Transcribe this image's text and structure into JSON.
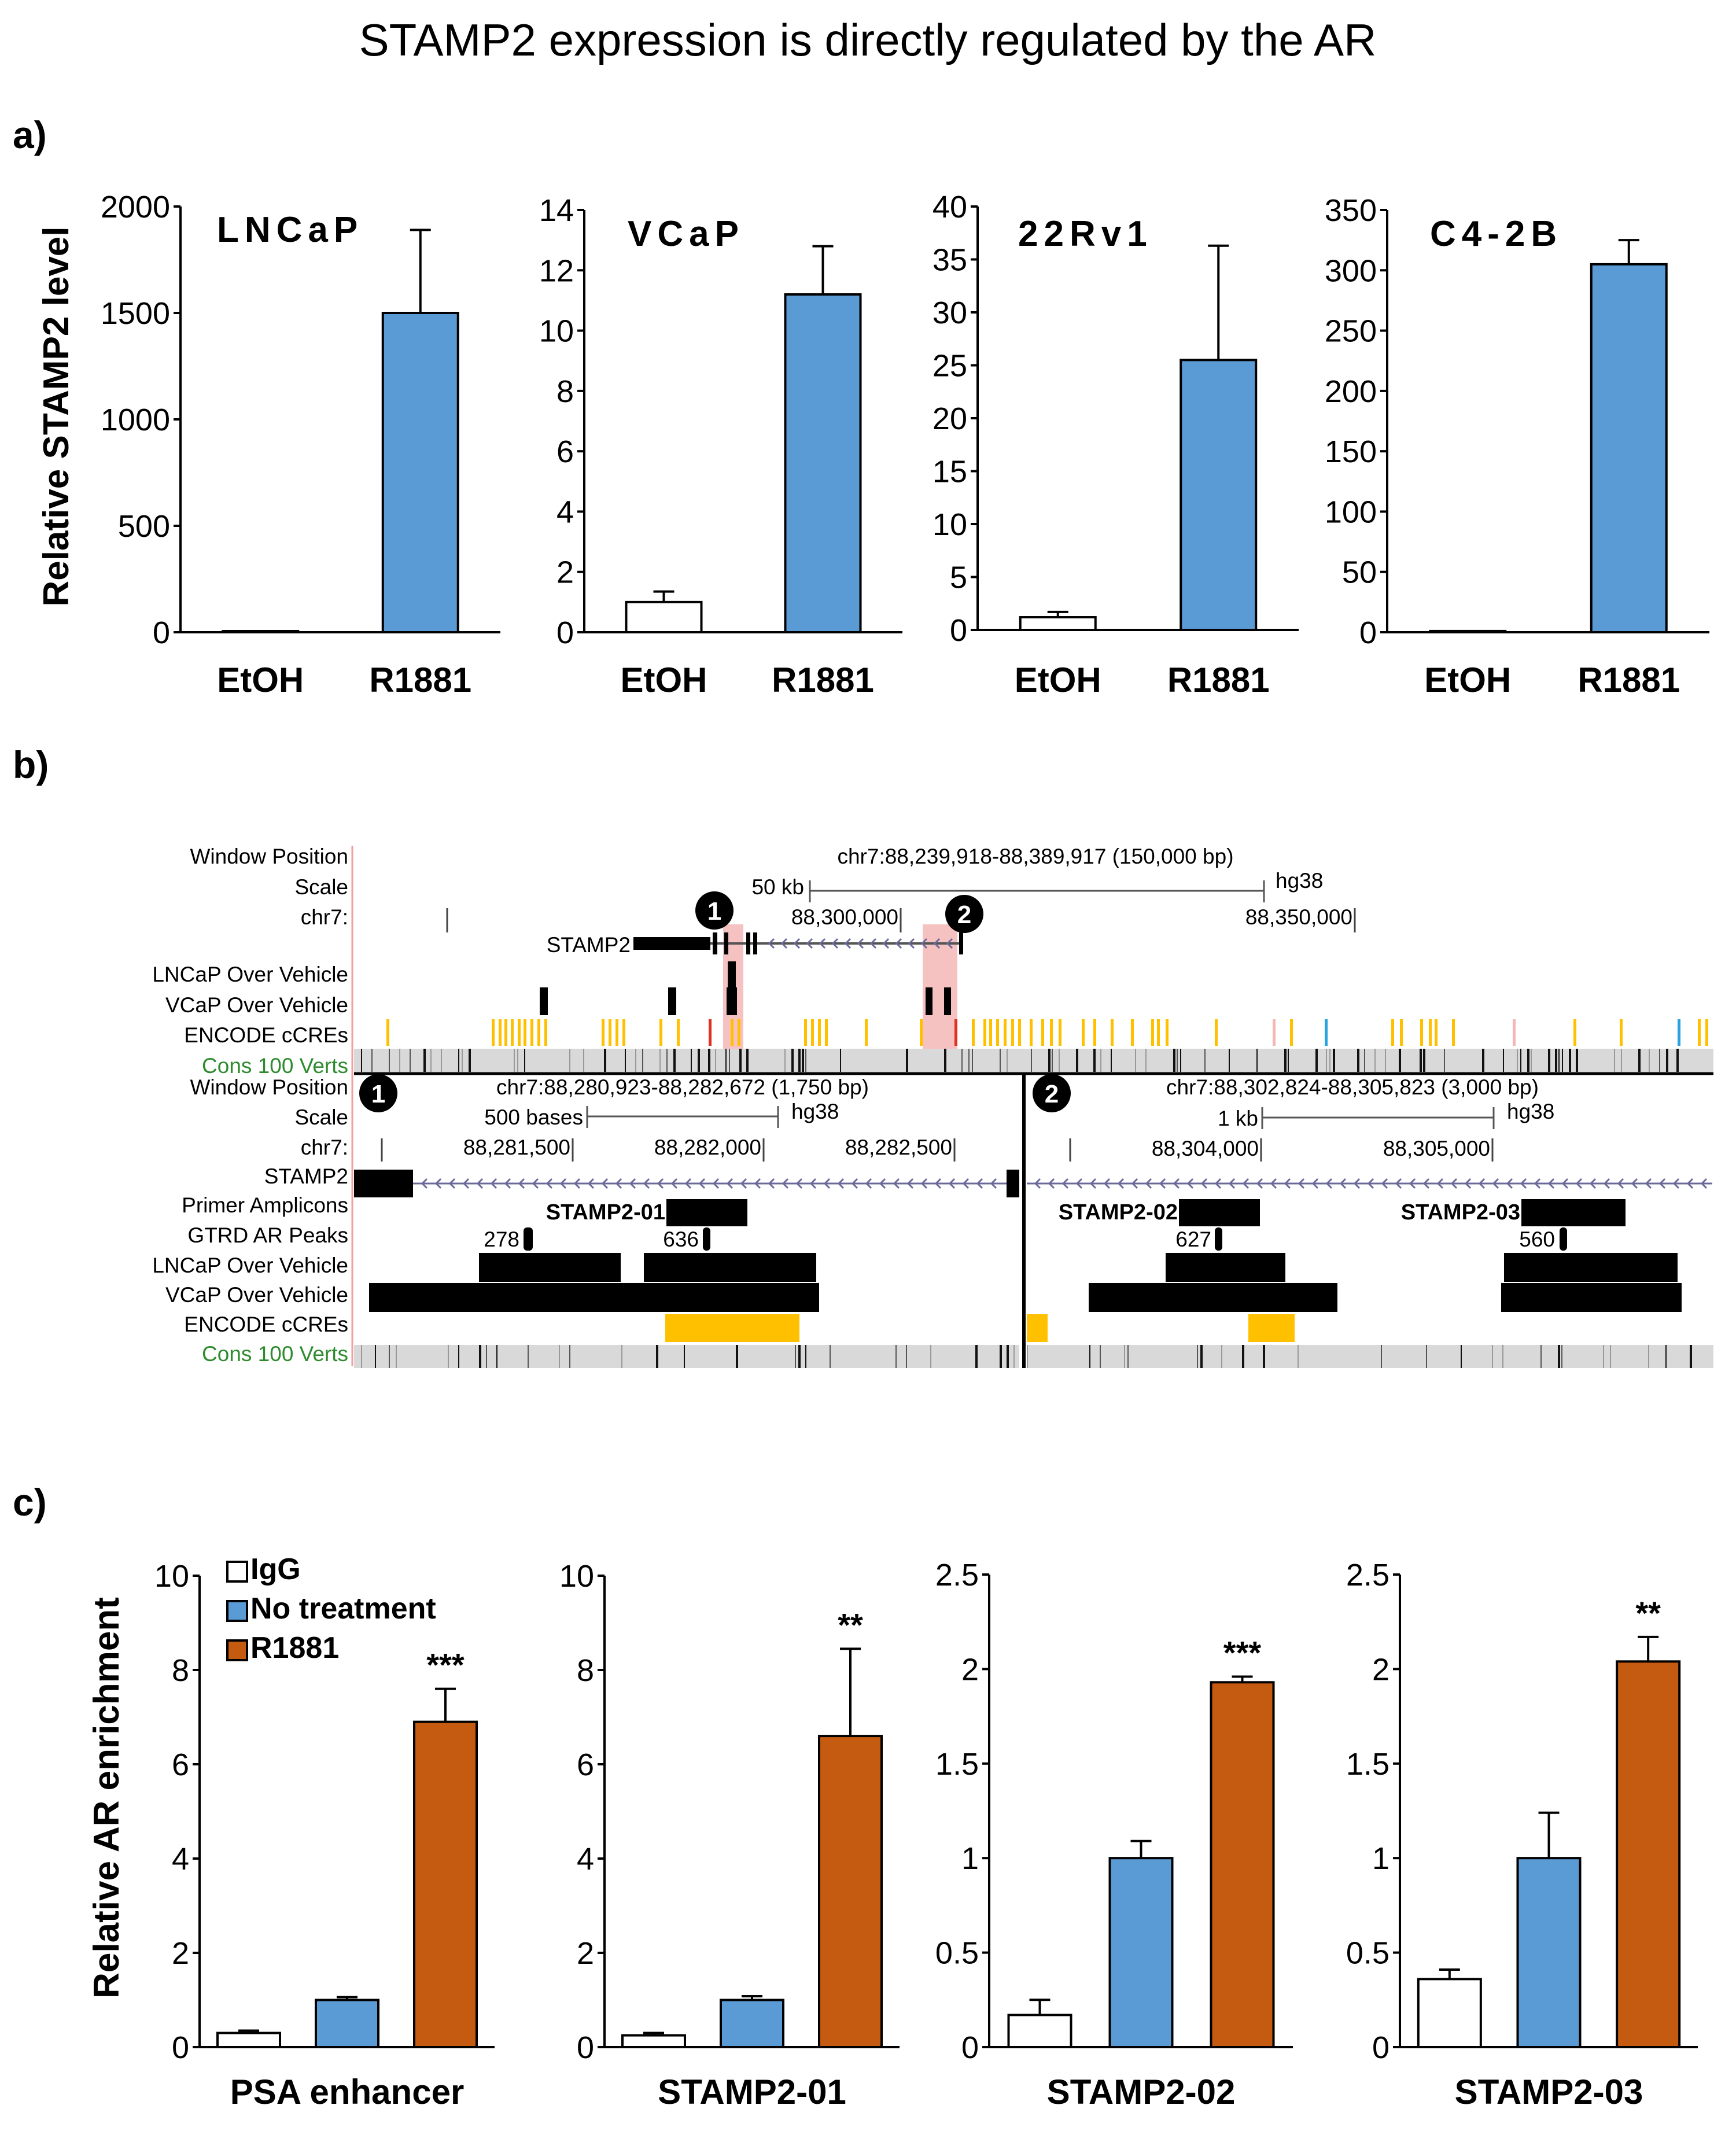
{
  "title": "STAMP2 expression is directly regulated by the AR",
  "panels": {
    "a": "a)",
    "b": "b)",
    "c": "c)"
  },
  "colors": {
    "blue": "#5b9bd5",
    "orange": "#c55a11",
    "white_bar": "#ffffff",
    "black": "#000000",
    "ccre_yellow": "#ffc000",
    "highlight_pink": "#f4b6b6",
    "cons_green": "#2e8b2e",
    "cons_track": "#d9d9d9"
  },
  "chart_data": [
    {
      "id": "a1",
      "type": "bar",
      "title": "LNCaP",
      "ylabel": "Relative STAMP2 level",
      "xlabel": "",
      "categories": [
        "EtOH",
        "R1881"
      ],
      "ylim": [
        0,
        2000
      ],
      "yticks": [
        "0",
        "500",
        "1000",
        "1500",
        "2000"
      ],
      "series": [
        {
          "name": "expression",
          "values": [
            1,
            1500
          ],
          "errors": [
            0,
            390
          ],
          "colors": [
            "#ffffff",
            "#5b9bd5"
          ]
        }
      ]
    },
    {
      "id": "a2",
      "type": "bar",
      "title": "VCaP",
      "ylabel": "",
      "xlabel": "",
      "categories": [
        "EtOH",
        "R1881"
      ],
      "ylim": [
        0,
        14
      ],
      "yticks": [
        "0",
        "2",
        "4",
        "6",
        "8",
        "10",
        "12",
        "14"
      ],
      "series": [
        {
          "name": "expression",
          "values": [
            1.0,
            11.2
          ],
          "errors": [
            0.35,
            1.6
          ],
          "colors": [
            "#ffffff",
            "#5b9bd5"
          ]
        }
      ]
    },
    {
      "id": "a3",
      "type": "bar",
      "title": "22Rv1",
      "ylabel": "",
      "xlabel": "",
      "categories": [
        "EtOH",
        "R1881"
      ],
      "ylim": [
        0,
        40
      ],
      "yticks": [
        "0",
        "5",
        "10",
        "15",
        "20",
        "25",
        "30",
        "35",
        "40"
      ],
      "series": [
        {
          "name": "expression",
          "values": [
            1.2,
            25.5
          ],
          "errors": [
            0.5,
            10.8
          ],
          "colors": [
            "#ffffff",
            "#5b9bd5"
          ]
        }
      ]
    },
    {
      "id": "a4",
      "type": "bar",
      "title": "C4-2B",
      "ylabel": "",
      "xlabel": "",
      "categories": [
        "EtOH",
        "R1881"
      ],
      "ylim": [
        0,
        350
      ],
      "yticks": [
        "0",
        "50",
        "100",
        "150",
        "200",
        "250",
        "300",
        "350"
      ],
      "series": [
        {
          "name": "expression",
          "values": [
            1,
            305
          ],
          "errors": [
            0,
            20
          ],
          "colors": [
            "#ffffff",
            "#5b9bd5"
          ]
        }
      ]
    },
    {
      "id": "c1",
      "type": "bar",
      "title": "",
      "ylabel": "Relative AR enrichment",
      "xlabel": "PSA enhancer",
      "categories": [
        "IgG",
        "No treatment",
        "R1881"
      ],
      "ylim": [
        0,
        10
      ],
      "yticks": [
        "0",
        "2",
        "4",
        "6",
        "8",
        "10"
      ],
      "series": [
        {
          "name": "enrichment",
          "values": [
            0.3,
            1.0,
            6.9
          ],
          "errors": [
            0.05,
            0.06,
            0.7
          ],
          "colors": [
            "#ffffff",
            "#5b9bd5",
            "#c55a11"
          ]
        }
      ],
      "significance": "***"
    },
    {
      "id": "c2",
      "type": "bar",
      "title": "",
      "ylabel": "",
      "xlabel": "STAMP2-01",
      "categories": [
        "IgG",
        "No treatment",
        "R1881"
      ],
      "ylim": [
        0,
        10
      ],
      "yticks": [
        "0",
        "2",
        "4",
        "6",
        "8",
        "10"
      ],
      "series": [
        {
          "name": "enrichment",
          "values": [
            0.25,
            1.0,
            6.6
          ],
          "errors": [
            0.05,
            0.08,
            1.85
          ],
          "colors": [
            "#ffffff",
            "#5b9bd5",
            "#c55a11"
          ]
        }
      ],
      "significance": "**"
    },
    {
      "id": "c3",
      "type": "bar",
      "title": "",
      "ylabel": "",
      "xlabel": "STAMP2-02",
      "categories": [
        "IgG",
        "No treatment",
        "R1881"
      ],
      "ylim": [
        0,
        2.5
      ],
      "yticks": [
        "0",
        "0.5",
        "1",
        "1.5",
        "2",
        "2.5"
      ],
      "series": [
        {
          "name": "enrichment",
          "values": [
            0.17,
            1.0,
            1.93
          ],
          "errors": [
            0.08,
            0.09,
            0.03
          ],
          "colors": [
            "#ffffff",
            "#5b9bd5",
            "#c55a11"
          ]
        }
      ],
      "significance": "***"
    },
    {
      "id": "c4",
      "type": "bar",
      "title": "",
      "ylabel": "",
      "xlabel": "STAMP2-03",
      "categories": [
        "IgG",
        "No treatment",
        "R1881"
      ],
      "ylim": [
        0,
        2.5
      ],
      "yticks": [
        "0",
        "0.5",
        "1",
        "1.5",
        "2",
        "2.5"
      ],
      "series": [
        {
          "name": "enrichment",
          "values": [
            0.36,
            1.0,
            2.04
          ],
          "errors": [
            0.05,
            0.24,
            0.13
          ],
          "colors": [
            "#ffffff",
            "#5b9bd5",
            "#c55a11"
          ]
        }
      ],
      "significance": "**"
    }
  ],
  "legend_c": [
    {
      "label": "IgG",
      "color": "#ffffff"
    },
    {
      "label": "No treatment",
      "color": "#5b9bd5"
    },
    {
      "label": "R1881",
      "color": "#c55a11"
    }
  ],
  "browser": {
    "track_labels_top": [
      "Window Position",
      "Scale",
      "chr7:",
      "LNCaP Over Vehicle",
      "VCaP Over Vehicle",
      "ENCODE cCREs",
      "Cons 100 Verts"
    ],
    "top": {
      "position": "chr7:88,239,918-88,389,917 (150,000 bp)",
      "scale": "50 kb",
      "assembly": "hg38",
      "coords": [
        "88,300,000",
        "88,350,000"
      ],
      "gene": "STAMP2",
      "markers": [
        "1",
        "2"
      ]
    },
    "track_labels_bottom": [
      "Window Position",
      "Scale",
      "chr7:",
      "STAMP2",
      "Primer Amplicons",
      "GTRD AR Peaks",
      "LNCaP Over Vehicle",
      "VCaP Over Vehicle",
      "ENCODE cCREs",
      "Cons 100 Verts"
    ],
    "zoom1": {
      "marker": "1",
      "position": "chr7:88,280,923-88,282,672 (1,750 bp)",
      "scale": "500 bases",
      "assembly": "hg38",
      "coords": [
        "88,281,500",
        "88,282,000",
        "88,282,500"
      ],
      "amplicon": "STAMP2-01",
      "peaks": [
        "278",
        "636"
      ]
    },
    "zoom2": {
      "marker": "2",
      "position": "chr7:88,302,824-88,305,823 (3,000 bp)",
      "scale": "1 kb",
      "assembly": "hg38",
      "coords": [
        "88,304,000",
        "88,305,000"
      ],
      "amplicons": [
        "STAMP2-02",
        "STAMP2-03"
      ],
      "peaks": [
        "627",
        "560"
      ]
    }
  }
}
